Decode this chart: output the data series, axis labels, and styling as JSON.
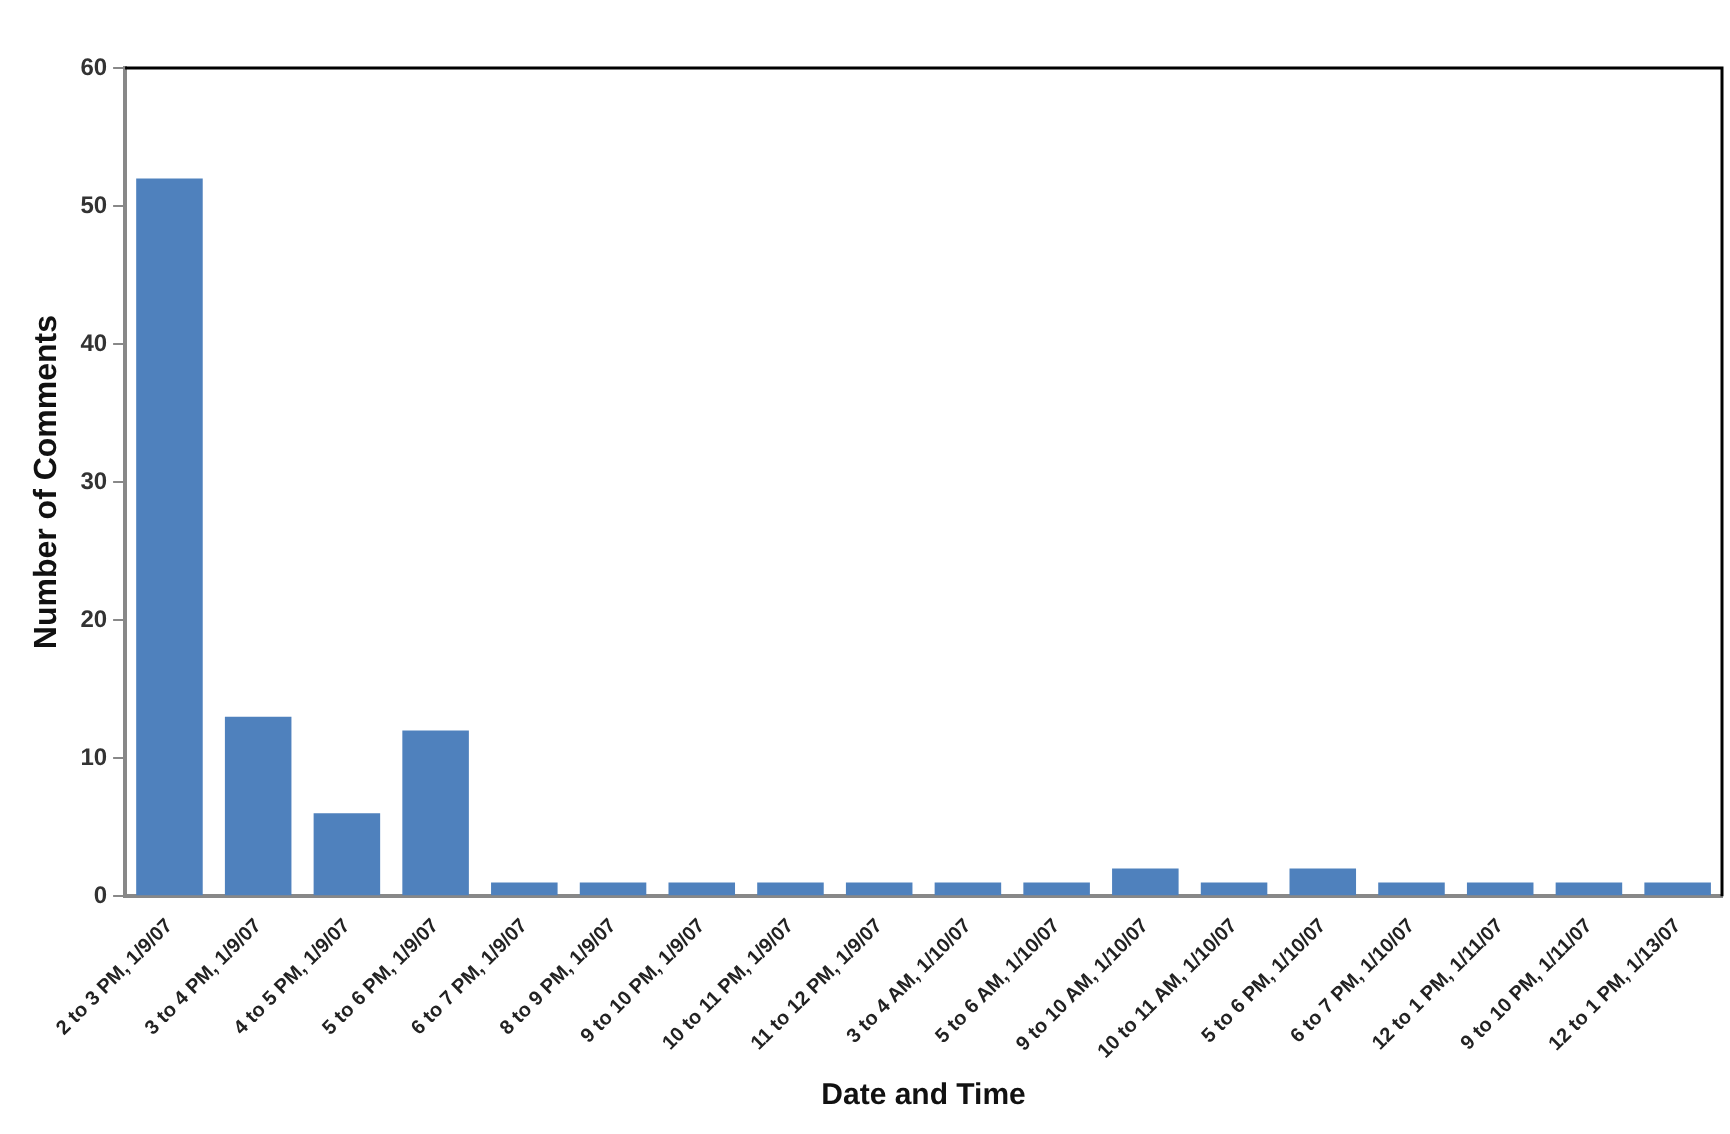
{
  "chart_data": {
    "type": "bar",
    "xlabel": "Date and Time",
    "ylabel": "Number of Comments",
    "categories": [
      "2 to 3 PM, 1/9/07",
      "3 to 4 PM, 1/9/07",
      "4 to 5 PM, 1/9/07",
      "5 to 6 PM, 1/9/07",
      "6 to 7 PM, 1/9/07",
      "8 to 9 PM, 1/9/07",
      "9 to 10 PM, 1/9/07",
      "10 to 11 PM, 1/9/07",
      "11 to 12 PM, 1/9/07",
      "3 to 4 AM, 1/10/07",
      "5 to 6 AM, 1/10/07",
      "9 to 10 AM, 1/10/07",
      "10 to 11 AM, 1/10/07",
      "5 to 6 PM, 1/10/07",
      "6 to 7 PM, 1/10/07",
      "12 to 1 PM, 1/11/07",
      "9 to 10 PM, 1/11/07",
      "12 to 1 PM, 1/13/07"
    ],
    "values": [
      52,
      13,
      6,
      12,
      1,
      1,
      1,
      1,
      1,
      1,
      1,
      2,
      1,
      2,
      1,
      1,
      1,
      1
    ],
    "color": "#4f81bd",
    "ylim": [
      0,
      60
    ],
    "yticks": [
      0,
      10,
      20,
      30,
      40,
      50,
      60
    ],
    "grid": false,
    "legend": false
  }
}
